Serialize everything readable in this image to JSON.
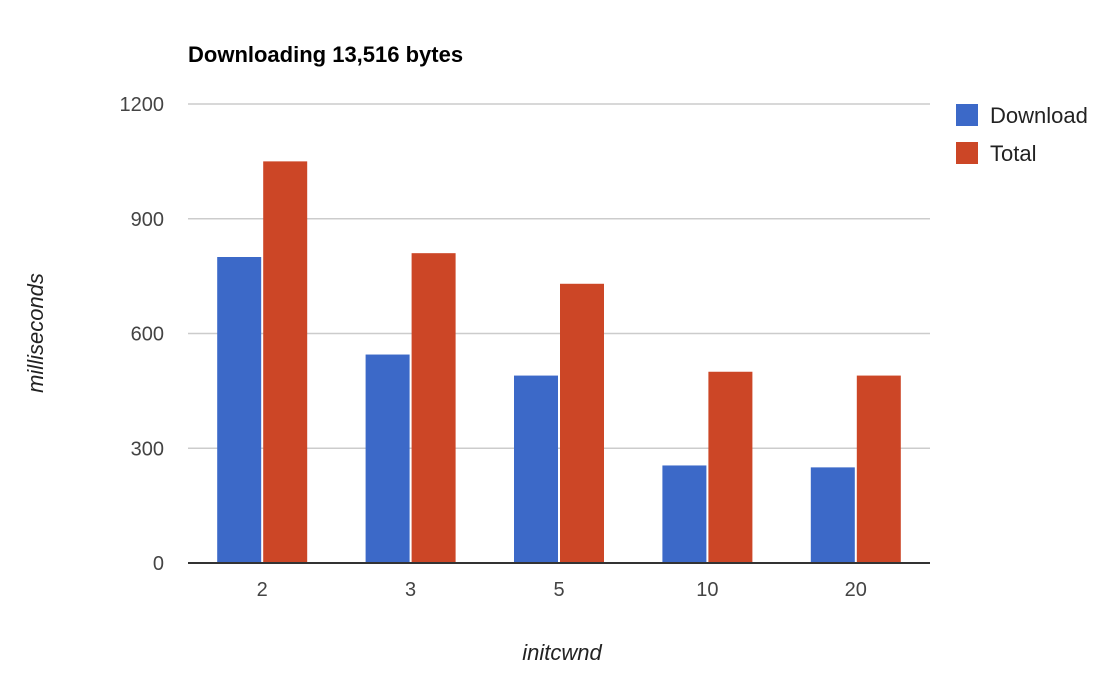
{
  "chart_data": {
    "type": "bar",
    "title": "Downloading 13,516 bytes",
    "xlabel": "initcwnd",
    "ylabel": "milliseconds",
    "categories": [
      "2",
      "3",
      "5",
      "10",
      "20"
    ],
    "ylim": [
      0,
      1200
    ],
    "yticks": [
      0,
      300,
      600,
      900,
      1200
    ],
    "grid": true,
    "legend_position": "right",
    "series": [
      {
        "name": "Download",
        "color": "#3c69c8",
        "values": [
          800,
          545,
          490,
          255,
          250
        ]
      },
      {
        "name": "Total",
        "color": "#cc4626",
        "values": [
          1050,
          810,
          730,
          500,
          490
        ]
      }
    ]
  }
}
